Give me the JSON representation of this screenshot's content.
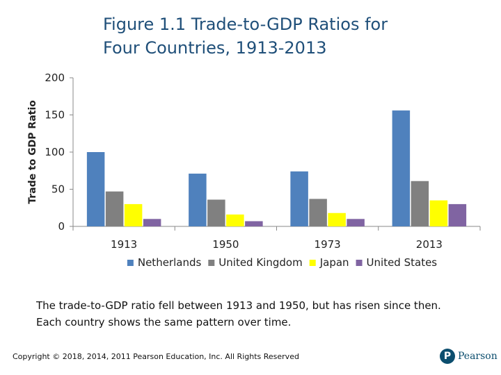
{
  "header": {
    "title_line1": "Figure 1.1 Trade-to-GDP Ratios for",
    "title_line2": "Four Countries, 1913-2013"
  },
  "chart_data": {
    "type": "bar",
    "title": "Figure 1.1 Trade-to-GDP Ratios for Four Countries, 1913-2013",
    "xlabel": "",
    "ylabel": "Trade to GDP Ratio",
    "ylim": [
      0,
      200
    ],
    "yticks": [
      0,
      50,
      100,
      150,
      200
    ],
    "categories": [
      "1913",
      "1950",
      "1973",
      "2013"
    ],
    "series": [
      {
        "name": "Netherlands",
        "color": "#4f81bd",
        "values": [
          100,
          71,
          74,
          156
        ]
      },
      {
        "name": "United Kingdom",
        "color": "#808080",
        "values": [
          47,
          36,
          37,
          61
        ]
      },
      {
        "name": "Japan",
        "color": "#ffff00",
        "values": [
          30,
          16,
          18,
          35
        ]
      },
      {
        "name": "United States",
        "color": "#8064a2",
        "values": [
          10,
          7,
          10,
          30
        ]
      }
    ],
    "grid": false,
    "legend": "bottom"
  },
  "caption": {
    "line1": "The trade-to-GDP ratio fell between 1913 and 1950, but has risen since then.",
    "line2": "Each country shows the same pattern over time."
  },
  "footer": {
    "copyright": "Copyright © 2018, 2014, 2011 Pearson Education, Inc. All Rights Reserved",
    "logo_letter": "P",
    "logo_text": "Pearson"
  }
}
